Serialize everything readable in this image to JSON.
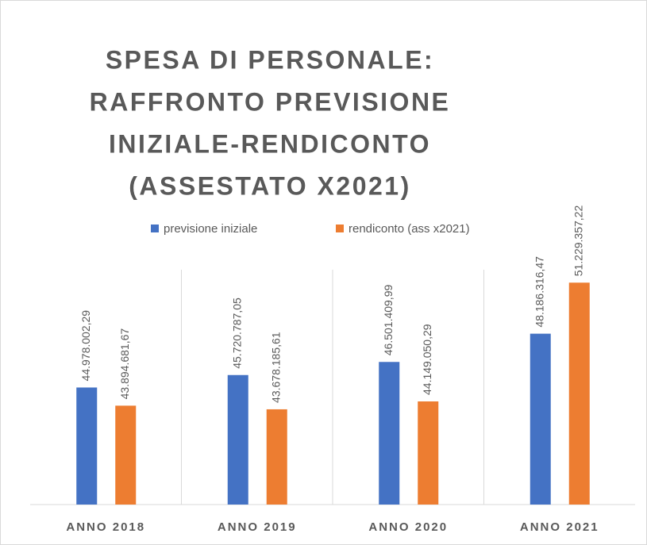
{
  "chart_data": {
    "type": "bar",
    "title": [
      "SPESA DI PERSONALE:",
      "RAFFRONTO PREVISIONE",
      "INIZIALE-RENDICONTO",
      "(ASSESTATO X2021)"
    ],
    "categories": [
      "ANNO 2018",
      "ANNO 2019",
      "ANNO 2020",
      "ANNO 2021"
    ],
    "series": [
      {
        "name": "previsione iniziale",
        "color": "#4472c4",
        "values": [
          44978002.29,
          45720787.05,
          46501409.99,
          48186316.47
        ],
        "value_labels": [
          "44.978.002,29",
          "45.720.787,05",
          "46.501.409,99",
          "48.186.316,47"
        ]
      },
      {
        "name": "rendiconto (ass x2021)",
        "color": "#ed7d31",
        "values": [
          43894681.67,
          43678185.61,
          44149050.29,
          51229357.22
        ],
        "value_labels": [
          "43.894.681,67",
          "43.678.185,61",
          "44.149.050,29",
          "51.229.357,22"
        ]
      }
    ],
    "ylim": [
      38000000,
      52000000
    ]
  }
}
